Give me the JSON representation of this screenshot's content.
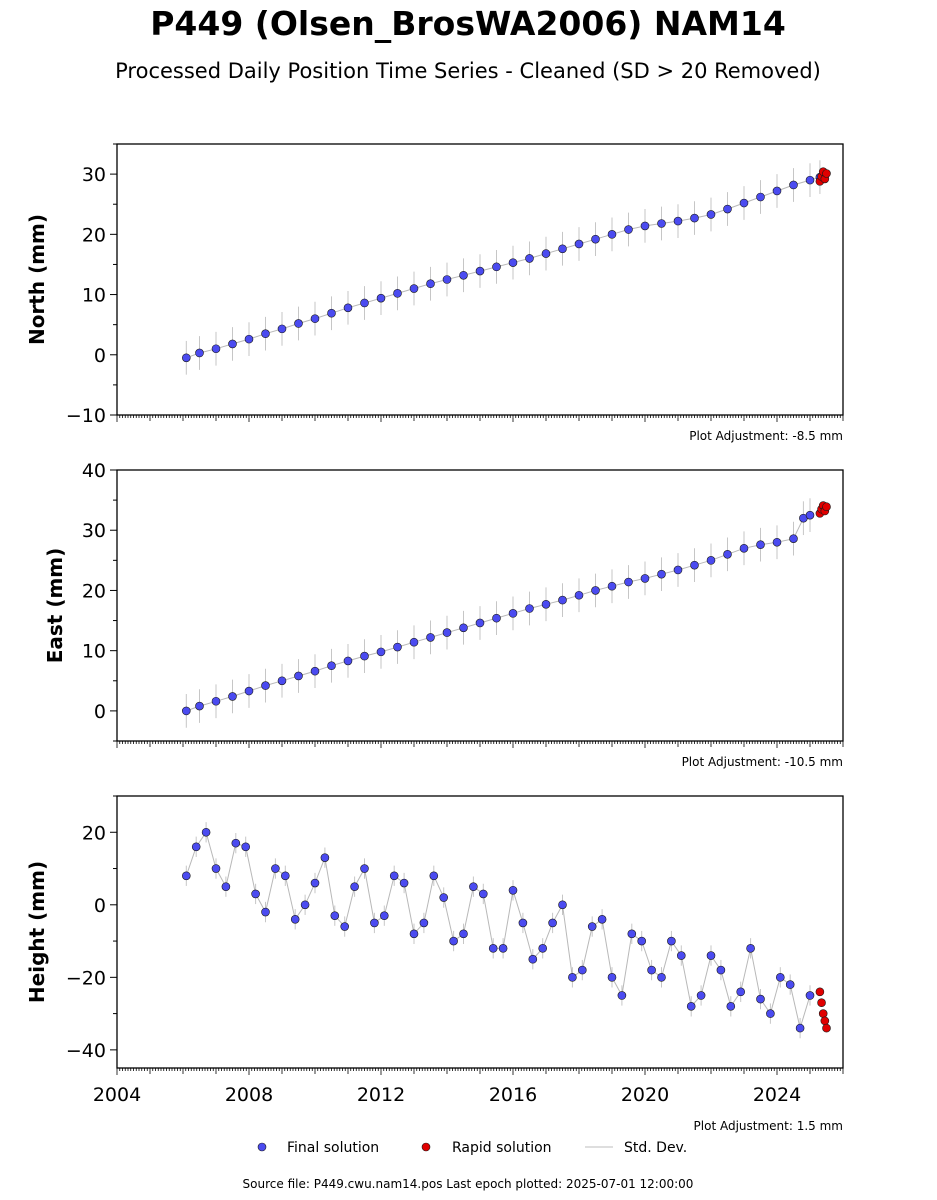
{
  "figure": {
    "title": "P449 (Olsen_BrosWA2006) NAM14",
    "subtitle": "Processed Daily Position Time Series - Cleaned (SD > 20 Removed)",
    "source_note": "Source file: P449.cwu.nam14.pos  Last epoch plotted: 2025-07-01 12:00:00"
  },
  "legend": {
    "final_label": "Final solution",
    "rapid_label": "Rapid solution",
    "std_label": "Std. Dev."
  },
  "colors": {
    "final": "#4b4bf0",
    "rapid": "#e00000",
    "std": "#808080",
    "marker_edge": "#1a1a1a"
  },
  "chart_data": [
    {
      "type": "scatter",
      "ylabel": "North (mm)",
      "adjustment_note": "Plot Adjustment: -8.5 mm",
      "xlim": [
        2004.0,
        2026.0
      ],
      "ylim": [
        -10,
        35
      ],
      "yticks": [
        -10,
        0,
        10,
        20,
        30
      ],
      "xticks": [
        2004,
        2008,
        2012,
        2016,
        2020,
        2024
      ],
      "show_xtick_labels": false,
      "series": [
        {
          "name": "Final solution",
          "x": [
            2006.1,
            2006.5,
            2007.0,
            2007.5,
            2008.0,
            2008.5,
            2009.0,
            2009.5,
            2010.0,
            2010.5,
            2011.0,
            2011.5,
            2012.0,
            2012.5,
            2013.0,
            2013.5,
            2014.0,
            2014.5,
            2015.0,
            2015.5,
            2016.0,
            2016.5,
            2017.0,
            2017.5,
            2018.0,
            2018.5,
            2019.0,
            2019.5,
            2020.0,
            2020.5,
            2021.0,
            2021.5,
            2022.0,
            2022.5,
            2023.0,
            2023.5,
            2024.0,
            2024.5,
            2025.0,
            2025.3
          ],
          "y": [
            -0.5,
            0.3,
            1.0,
            1.8,
            2.6,
            3.5,
            4.3,
            5.2,
            6.0,
            6.9,
            7.8,
            8.6,
            9.4,
            10.2,
            11.0,
            11.8,
            12.5,
            13.2,
            13.9,
            14.6,
            15.3,
            16.0,
            16.8,
            17.6,
            18.4,
            19.2,
            20.0,
            20.8,
            21.4,
            21.8,
            22.2,
            22.7,
            23.3,
            24.2,
            25.2,
            26.2,
            27.2,
            28.2,
            29.0,
            29.5
          ]
        },
        {
          "name": "Rapid solution",
          "x": [
            2025.3,
            2025.35,
            2025.4,
            2025.45,
            2025.5
          ],
          "y": [
            28.8,
            29.6,
            30.4,
            29.2,
            30.1
          ]
        }
      ]
    },
    {
      "type": "scatter",
      "ylabel": "East (mm)",
      "adjustment_note": "Plot Adjustment: -10.5 mm",
      "xlim": [
        2004.0,
        2026.0
      ],
      "ylim": [
        -5,
        40
      ],
      "yticks": [
        0,
        10,
        20,
        30,
        40
      ],
      "xticks": [
        2004,
        2008,
        2012,
        2016,
        2020,
        2024
      ],
      "show_xtick_labels": false,
      "series": [
        {
          "name": "Final solution",
          "x": [
            2006.1,
            2006.5,
            2007.0,
            2007.5,
            2008.0,
            2008.5,
            2009.0,
            2009.5,
            2010.0,
            2010.5,
            2011.0,
            2011.5,
            2012.0,
            2012.5,
            2013.0,
            2013.5,
            2014.0,
            2014.5,
            2015.0,
            2015.5,
            2016.0,
            2016.5,
            2017.0,
            2017.5,
            2018.0,
            2018.5,
            2019.0,
            2019.5,
            2020.0,
            2020.5,
            2021.0,
            2021.5,
            2022.0,
            2022.5,
            2023.0,
            2023.5,
            2024.0,
            2024.5,
            2024.8,
            2025.0
          ],
          "y": [
            0.0,
            0.8,
            1.6,
            2.4,
            3.3,
            4.2,
            5.0,
            5.8,
            6.6,
            7.5,
            8.3,
            9.1,
            9.8,
            10.6,
            11.4,
            12.2,
            13.0,
            13.8,
            14.6,
            15.4,
            16.2,
            17.0,
            17.7,
            18.4,
            19.2,
            20.0,
            20.7,
            21.4,
            22.0,
            22.7,
            23.4,
            24.2,
            25.0,
            26.0,
            27.0,
            27.6,
            28.0,
            28.6,
            32.0,
            32.5
          ]
        },
        {
          "name": "Rapid solution",
          "x": [
            2025.3,
            2025.35,
            2025.4,
            2025.45,
            2025.5
          ],
          "y": [
            32.8,
            33.5,
            34.1,
            33.2,
            33.9
          ]
        }
      ]
    },
    {
      "type": "scatter",
      "ylabel": "Height (mm)",
      "adjustment_note": "Plot Adjustment: 1.5 mm",
      "xlim": [
        2004.0,
        2026.0
      ],
      "ylim": [
        -45,
        30
      ],
      "yticks": [
        -40,
        -20,
        0,
        20
      ],
      "xticks": [
        2004,
        2008,
        2012,
        2016,
        2020,
        2024
      ],
      "xtick_labels": [
        "2004",
        "2008",
        "2012",
        "2016",
        "2020",
        "2024"
      ],
      "show_xtick_labels": true,
      "series": [
        {
          "name": "Final solution",
          "x": [
            2006.1,
            2006.4,
            2006.7,
            2007.0,
            2007.3,
            2007.6,
            2007.9,
            2008.2,
            2008.5,
            2008.8,
            2009.1,
            2009.4,
            2009.7,
            2010.0,
            2010.3,
            2010.6,
            2010.9,
            2011.2,
            2011.5,
            2011.8,
            2012.1,
            2012.4,
            2012.7,
            2013.0,
            2013.3,
            2013.6,
            2013.9,
            2014.2,
            2014.5,
            2014.8,
            2015.1,
            2015.4,
            2015.7,
            2016.0,
            2016.3,
            2016.6,
            2016.9,
            2017.2,
            2017.5,
            2017.8,
            2018.1,
            2018.4,
            2018.7,
            2019.0,
            2019.3,
            2019.6,
            2019.9,
            2020.2,
            2020.5,
            2020.8,
            2021.1,
            2021.4,
            2021.7,
            2022.0,
            2022.3,
            2022.6,
            2022.9,
            2023.2,
            2023.5,
            2023.8,
            2024.1,
            2024.4,
            2024.7,
            2025.0
          ],
          "y": [
            8,
            16,
            20,
            10,
            5,
            17,
            16,
            3,
            -2,
            10,
            8,
            -4,
            0,
            6,
            13,
            -3,
            -6,
            5,
            10,
            -5,
            -3,
            8,
            6,
            -8,
            -5,
            8,
            2,
            -10,
            -8,
            5,
            3,
            -12,
            -12,
            4,
            -5,
            -15,
            -12,
            -5,
            0,
            -20,
            -18,
            -6,
            -4,
            -20,
            -25,
            -8,
            -10,
            -18,
            -20,
            -10,
            -14,
            -28,
            -25,
            -14,
            -18,
            -28,
            -24,
            -12,
            -26,
            -30,
            -20,
            -22,
            -34,
            -25
          ]
        },
        {
          "name": "Rapid solution",
          "x": [
            2025.3,
            2025.35,
            2025.4,
            2025.45,
            2025.5
          ],
          "y": [
            -24,
            -27,
            -30,
            -32,
            -34
          ]
        }
      ]
    }
  ]
}
